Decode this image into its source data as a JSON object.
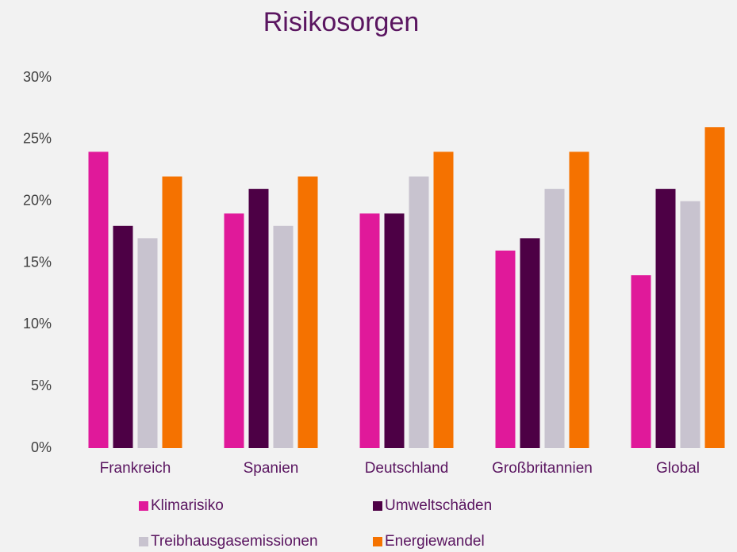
{
  "chart_data": {
    "type": "bar",
    "title": "Risikosorgen",
    "categories": [
      "Frankreich",
      "Spanien",
      "Deutschland",
      "Großbritannien",
      "Global"
    ],
    "series": [
      {
        "name": "Klimarisiko",
        "color": "#e0199a",
        "values": [
          24,
          19,
          19,
          16,
          14
        ]
      },
      {
        "name": "Umweltschäden",
        "color": "#4d0045",
        "values": [
          18,
          21,
          19,
          17,
          21
        ]
      },
      {
        "name": "Treibhausgasemissionen",
        "color": "#c8c3cf",
        "values": [
          17,
          18,
          22,
          21,
          20
        ]
      },
      {
        "name": "Energiewandel",
        "color": "#f57200",
        "values": [
          22,
          22,
          24,
          24,
          26
        ]
      }
    ],
    "ylim": [
      0,
      30
    ],
    "yticks": [
      {
        "value": 0,
        "label": "0%"
      },
      {
        "value": 5,
        "label": "5%"
      },
      {
        "value": 10,
        "label": "10%"
      },
      {
        "value": 15,
        "label": "15%"
      },
      {
        "value": 20,
        "label": "20%"
      },
      {
        "value": 25,
        "label": "25%"
      },
      {
        "value": 30,
        "label": "30%"
      }
    ],
    "grid": false,
    "legend": "bottom"
  }
}
